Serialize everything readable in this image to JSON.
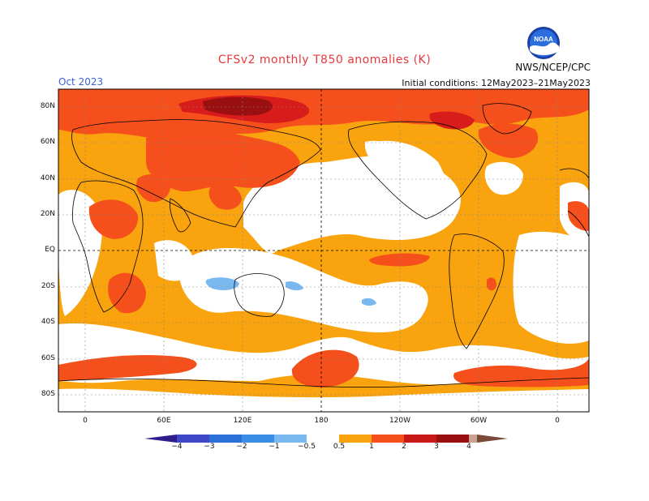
{
  "header": {
    "title": "CFSv2 monthly T850 anomalies (K)",
    "agency": "NWS/NCEP/CPC",
    "month": "Oct 2023",
    "initial_conditions": "Initial conditions: 12May2023–21May2023"
  },
  "logo": {
    "icon": "noaa-logo-icon",
    "text": "NOAA"
  },
  "axes": {
    "y_ticks": [
      "80N",
      "60N",
      "40N",
      "20N",
      "EQ",
      "20S",
      "40S",
      "60S",
      "80S"
    ],
    "x_ticks": [
      "0",
      "60E",
      "120E",
      "180",
      "120W",
      "60W",
      "0"
    ]
  },
  "colorbar": {
    "ticks": [
      "−4",
      "−3",
      "−2",
      "−1",
      "−0.5",
      "0.5",
      "1",
      "2",
      "3",
      "4"
    ],
    "colors": [
      "#2e1e8c",
      "#3e48c6",
      "#2a70d8",
      "#4598e8",
      "#7ab8f0",
      "#ffffff",
      "#f9a30f",
      "#f5501c",
      "#d81b1b",
      "#9a0f0f",
      "#c9a292",
      "#7a4a38"
    ]
  },
  "colors": {
    "warm_05_1": "#f9a30f",
    "warm_1_2": "#f5501c",
    "warm_2_3": "#d81b1b",
    "warm_3_4": "#9a0f0f",
    "cool_05_1": "#7ab8f0",
    "title_red": "#e8383b",
    "month_blue": "#3a5fd6"
  }
}
